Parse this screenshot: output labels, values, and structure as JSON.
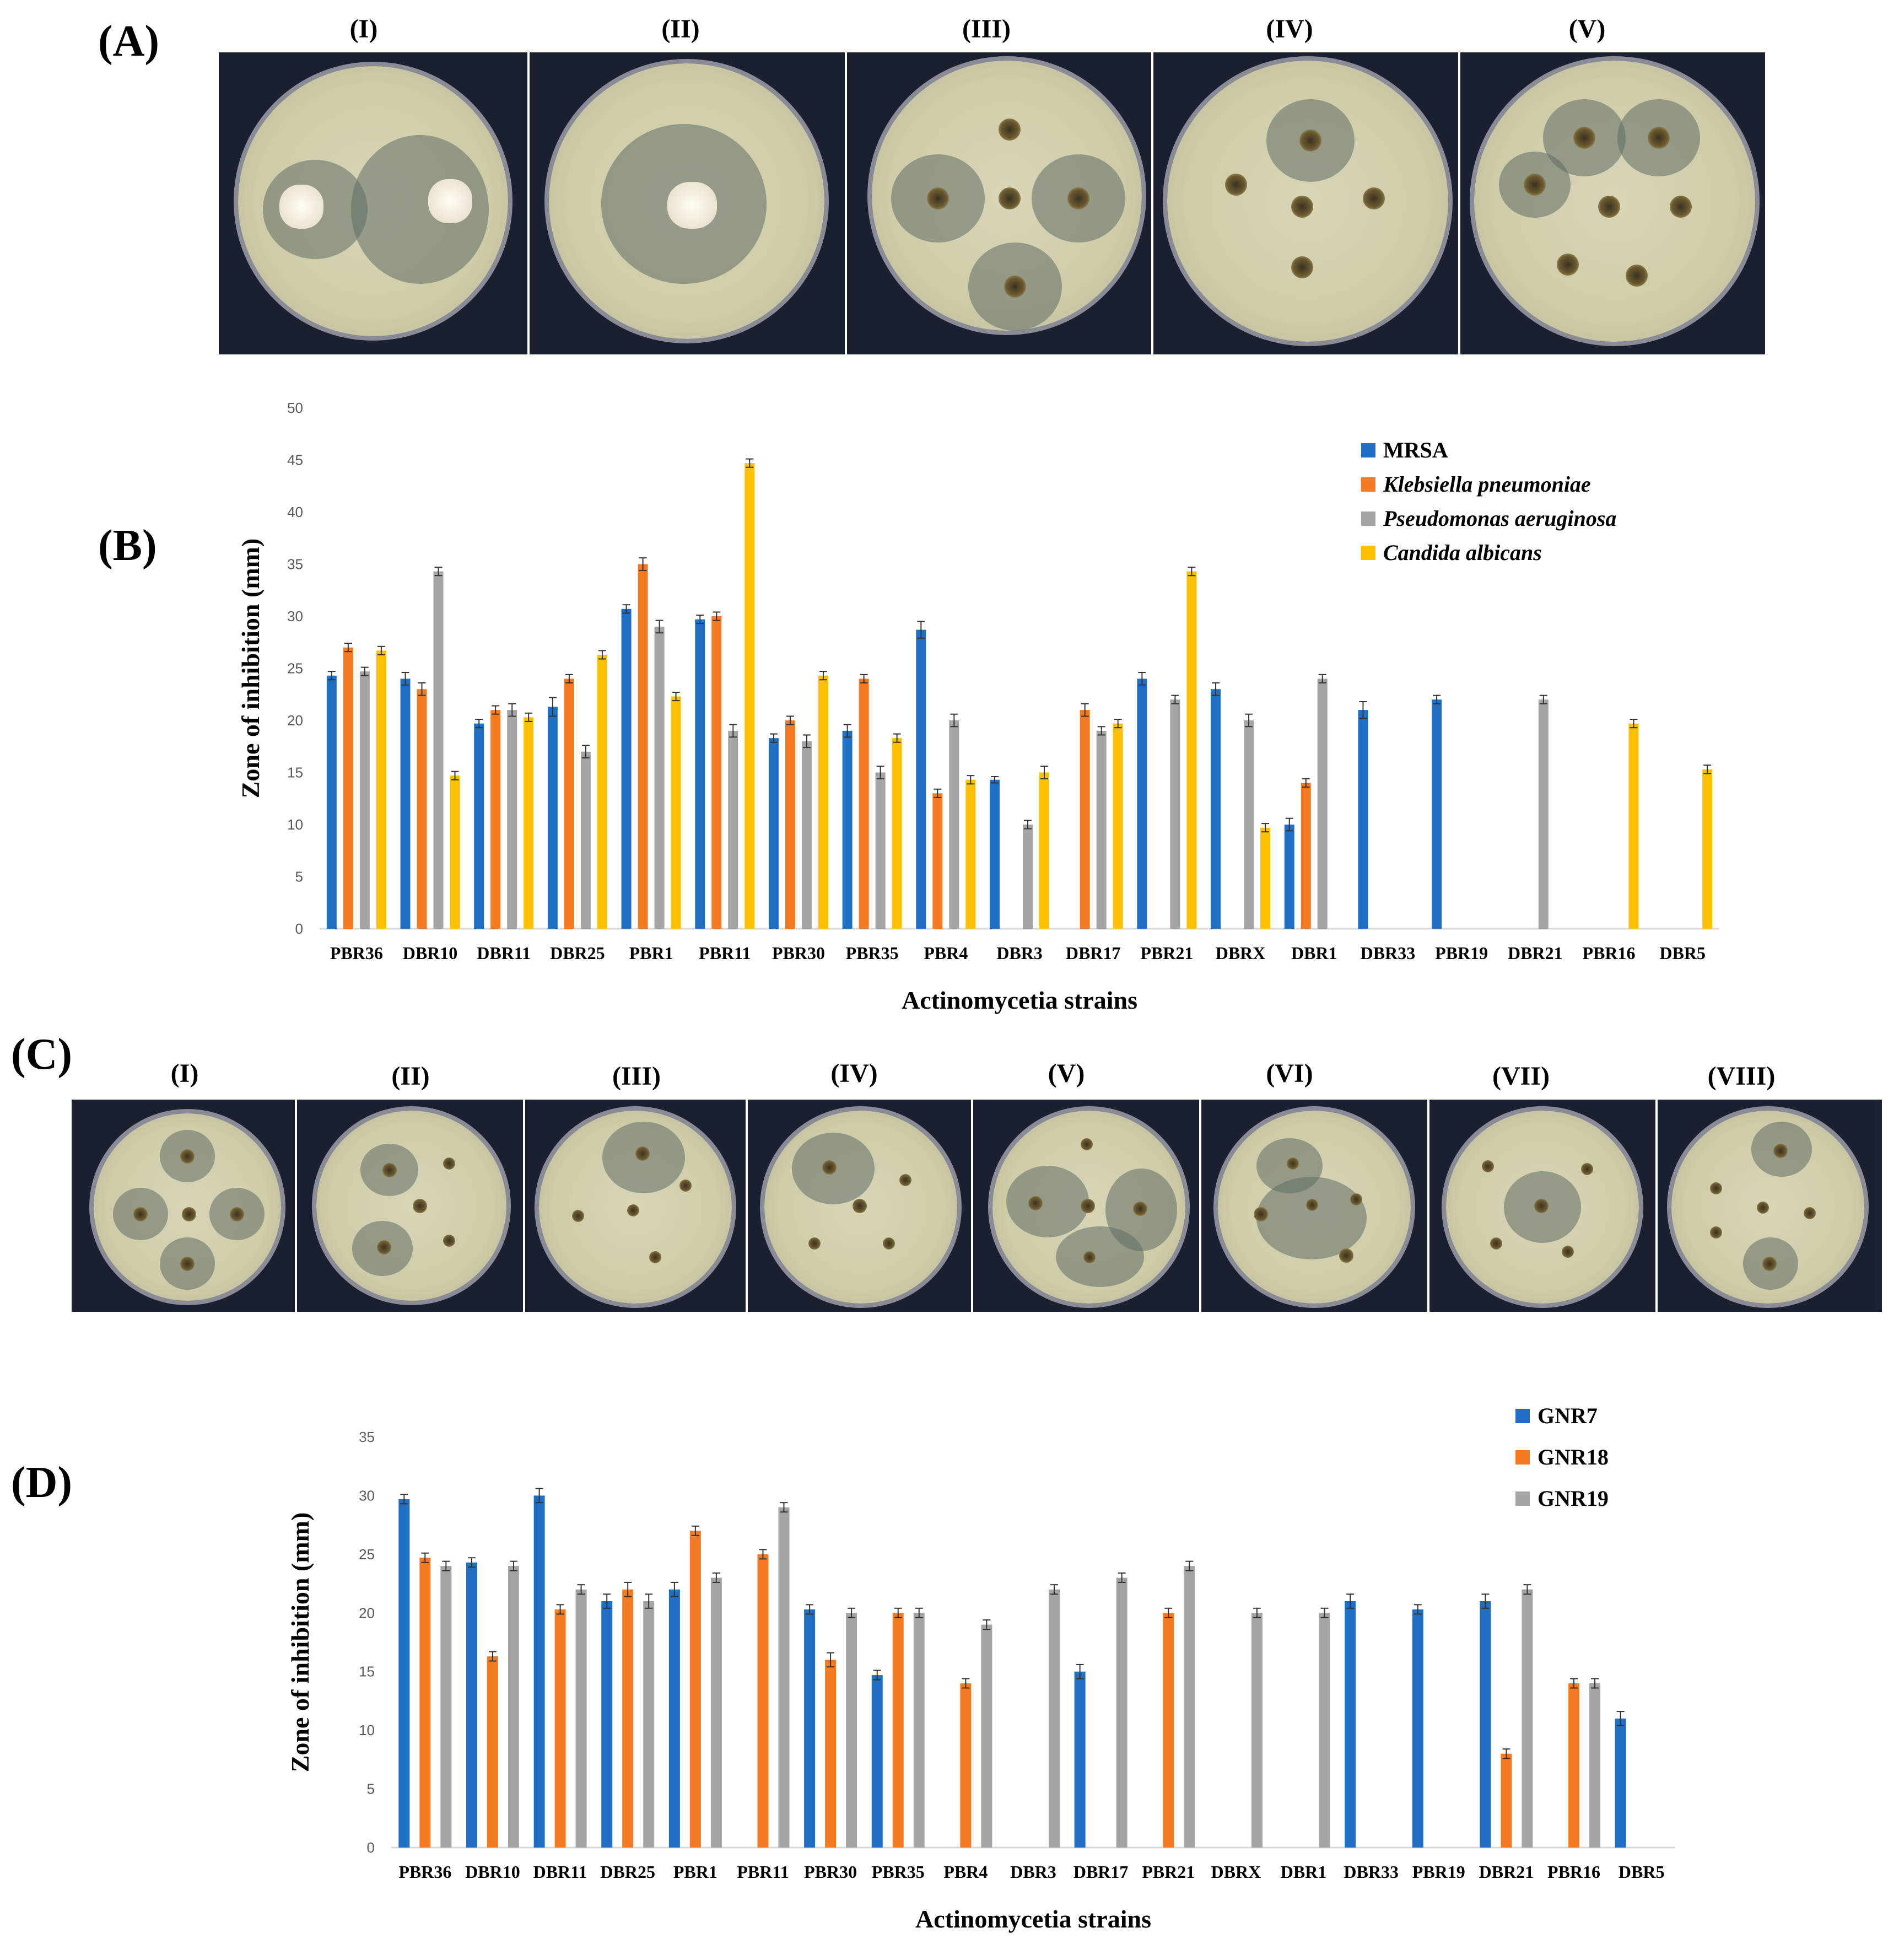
{
  "panels": {
    "A": "(A)",
    "B": "(B)",
    "C": "(C)",
    "D": "(D)"
  },
  "panel_a_plates": [
    "(I)",
    "(II)",
    "(III)",
    "(IV)",
    "(V)"
  ],
  "panel_c_plates": [
    "(I)",
    "(II)",
    "(III)",
    "(IV)",
    "(V)",
    "(VI)",
    "(VII)",
    "(VIII)"
  ],
  "chart_data": [
    {
      "type": "bar",
      "panel": "B",
      "categories": [
        "PBR36",
        "DBR10",
        "DBR11",
        "DBR25",
        "PBR1",
        "PBR11",
        "PBR30",
        "PBR35",
        "PBR4",
        "DBR3",
        "DBR17",
        "PBR21",
        "DBRX",
        "DBR1",
        "DBR33",
        "PBR19",
        "DBR21",
        "PBR16",
        "DBR5"
      ],
      "series": [
        {
          "name": "MRSA",
          "italic": false,
          "color": "#1f6fc5",
          "values": [
            24.3,
            24,
            19.7,
            21.3,
            30.7,
            29.7,
            18.3,
            19,
            28.7,
            14.3,
            0,
            24,
            23,
            10,
            21,
            22,
            0,
            0,
            0
          ],
          "errors": [
            0.4,
            0.6,
            0.4,
            0.9,
            0.4,
            0.4,
            0.4,
            0.6,
            0.8,
            0.3,
            0,
            0.6,
            0.6,
            0.6,
            0.8,
            0.4,
            0,
            0,
            0
          ]
        },
        {
          "name": "Klebsiella pneumoniae",
          "italic": true,
          "color": "#f47b22",
          "values": [
            27,
            23,
            21,
            24,
            35,
            30,
            20,
            24,
            13,
            0,
            21,
            0,
            0,
            14,
            0,
            0,
            0,
            0,
            0
          ],
          "errors": [
            0.4,
            0.6,
            0.4,
            0.4,
            0.6,
            0.4,
            0.4,
            0.4,
            0.4,
            0,
            0.6,
            0,
            0,
            0.4,
            0,
            0,
            0,
            0,
            0
          ]
        },
        {
          "name": "Pseudomonas aeruginosa",
          "italic": true,
          "color": "#a5a5a5",
          "values": [
            24.7,
            34.3,
            21,
            17,
            29,
            19,
            18,
            15,
            20,
            10,
            19,
            22,
            20,
            24,
            0,
            0,
            22,
            0,
            0
          ],
          "errors": [
            0.4,
            0.4,
            0.6,
            0.6,
            0.6,
            0.6,
            0.6,
            0.6,
            0.6,
            0.4,
            0.4,
            0.4,
            0.6,
            0.4,
            0,
            0,
            0.4,
            0,
            0
          ]
        },
        {
          "name": "Candida albicans",
          "italic": true,
          "color": "#ffc000",
          "values": [
            26.7,
            14.7,
            20.3,
            26.3,
            22.3,
            44.7,
            24.3,
            18.3,
            14.3,
            15,
            19.7,
            34.3,
            9.7,
            0,
            0,
            0,
            0,
            19.7,
            15.3
          ],
          "errors": [
            0.4,
            0.4,
            0.4,
            0.4,
            0.4,
            0.4,
            0.4,
            0.4,
            0.4,
            0.6,
            0.4,
            0.4,
            0.4,
            0,
            0,
            0,
            0,
            0.4,
            0.4
          ]
        }
      ],
      "ylim": [
        0,
        50
      ],
      "yticks": [
        "0",
        "5",
        "10",
        "15",
        "20",
        "25",
        "30",
        "35",
        "40",
        "45",
        "50"
      ],
      "xlabel": "Actinomycetia strains",
      "ylabel": "Zone of inhibition (mm)",
      "legend_position": "top-right"
    },
    {
      "type": "bar",
      "panel": "D",
      "categories": [
        "PBR36",
        "DBR10",
        "DBR11",
        "DBR25",
        "PBR1",
        "PBR11",
        "PBR30",
        "PBR35",
        "PBR4",
        "DBR3",
        "DBR17",
        "PBR21",
        "DBRX",
        "DBR1",
        "DBR33",
        "PBR19",
        "DBR21",
        "PBR16",
        "DBR5"
      ],
      "series": [
        {
          "name": "GNR7",
          "italic": false,
          "color": "#1f6fc5",
          "values": [
            29.7,
            24.3,
            30,
            21,
            22,
            0,
            20.3,
            14.7,
            0,
            0,
            15,
            0,
            0,
            0,
            21,
            20.3,
            21,
            0,
            11
          ],
          "errors": [
            0.4,
            0.4,
            0.6,
            0.6,
            0.6,
            0,
            0.4,
            0.4,
            0,
            0,
            0.6,
            0,
            0,
            0,
            0.6,
            0.4,
            0.6,
            0,
            0.6
          ]
        },
        {
          "name": "GNR18",
          "italic": false,
          "color": "#f47b22",
          "values": [
            24.7,
            16.3,
            20.3,
            22,
            27,
            25,
            16,
            20,
            14,
            0,
            0,
            20,
            0,
            0,
            0,
            0,
            8,
            14,
            0
          ],
          "errors": [
            0.4,
            0.4,
            0.4,
            0.6,
            0.4,
            0.4,
            0.6,
            0.4,
            0.4,
            0,
            0,
            0.4,
            0,
            0,
            0,
            0,
            0.4,
            0.4,
            0
          ]
        },
        {
          "name": "GNR19",
          "italic": false,
          "color": "#a5a5a5",
          "values": [
            24,
            24,
            22,
            21,
            23,
            29,
            20,
            20,
            19,
            22,
            23,
            24,
            20,
            20,
            0,
            0,
            22,
            14,
            0
          ],
          "errors": [
            0.4,
            0.4,
            0.4,
            0.6,
            0.4,
            0.4,
            0.4,
            0.4,
            0.4,
            0.4,
            0.4,
            0.4,
            0.4,
            0.4,
            0,
            0,
            0.4,
            0.4,
            0
          ]
        }
      ],
      "ylim": [
        0,
        35
      ],
      "yticks": [
        "0",
        "5",
        "10",
        "15",
        "20",
        "25",
        "30",
        "35"
      ],
      "xlabel": "Actinomycetia strains",
      "ylabel": "Zone of inhibition (mm)",
      "legend_position": "top-right"
    }
  ]
}
